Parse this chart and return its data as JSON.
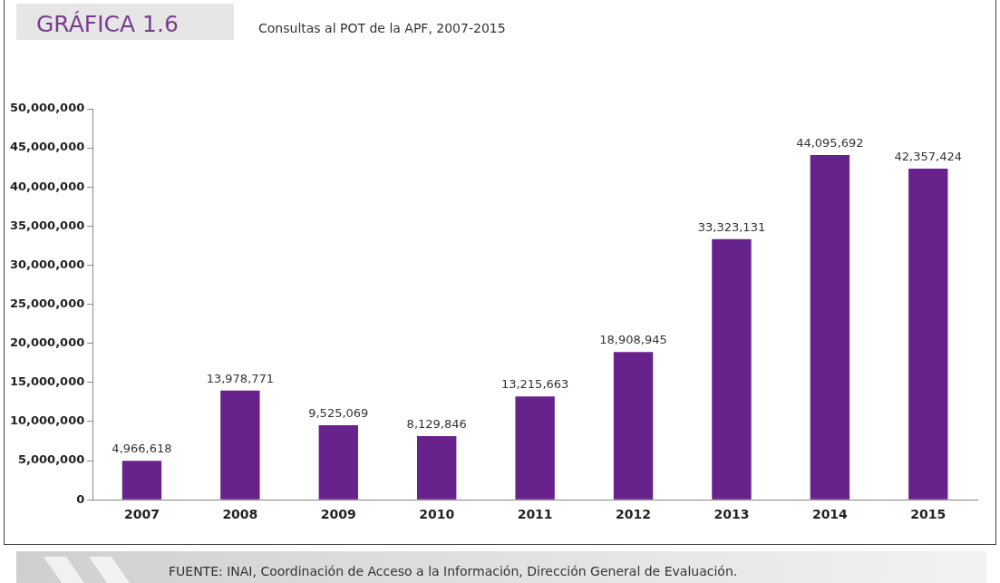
{
  "chart_data": {
    "type": "bar",
    "title": "GRÁFICA 1.6",
    "subtitle": "Consultas al POT de la APF, 2007-2015",
    "categories": [
      "2007",
      "2008",
      "2009",
      "2010",
      "2011",
      "2012",
      "2013",
      "2014",
      "2015"
    ],
    "values": [
      4966618,
      13978771,
      9525069,
      8129846,
      13215663,
      18908945,
      33323131,
      44095692,
      42357424
    ],
    "value_labels": [
      "4,966,618",
      "13,978,771",
      "9,525,069",
      "8,129,846",
      "13,215,663",
      "18,908,945",
      "33,323,131",
      "44,095,692",
      "42,357,424"
    ],
    "color": "#68228b",
    "ylim": [
      0,
      50000000
    ],
    "yticks": [
      {
        "value": 0,
        "label": "0"
      },
      {
        "value": 5000000,
        "label": "5,000,000"
      },
      {
        "value": 10000000,
        "label": "10,000,000"
      },
      {
        "value": 15000000,
        "label": "15,000,000"
      },
      {
        "value": 20000000,
        "label": "20,000,000"
      },
      {
        "value": 25000000,
        "label": "25,000,000"
      },
      {
        "value": 30000000,
        "label": "30,000,000"
      },
      {
        "value": 35000000,
        "label": "35,000,000"
      },
      {
        "value": 40000000,
        "label": "40,000,000"
      },
      {
        "value": 45000000,
        "label": "45,000,000"
      },
      {
        "value": 50000000,
        "label": "50,000,000"
      }
    ],
    "grid": false,
    "legend": false,
    "annotations": [
      "FUENTE: INAI, Coordinación de Acceso a la Información, Dirección General de Evaluación."
    ]
  }
}
